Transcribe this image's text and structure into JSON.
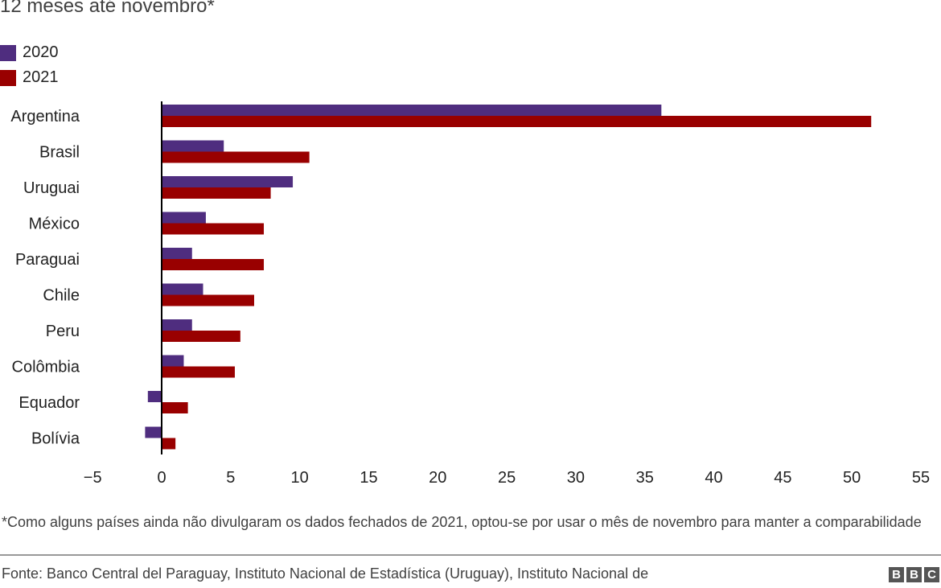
{
  "chart_data": {
    "type": "bar",
    "orientation": "horizontal",
    "subtitle": "12 meses até novembro*",
    "categories": [
      "Argentina",
      "Brasil",
      "Uruguai",
      "México",
      "Paraguai",
      "Chile",
      "Peru",
      "Colômbia",
      "Equador",
      "Bolívia"
    ],
    "series": [
      {
        "name": "2020",
        "color": "#4f2d7f",
        "values": [
          36.2,
          4.5,
          9.5,
          3.2,
          2.2,
          3.0,
          2.2,
          1.6,
          -1.0,
          -1.2
        ]
      },
      {
        "name": "2021",
        "color": "#990000",
        "values": [
          51.4,
          10.7,
          7.9,
          7.4,
          7.4,
          6.7,
          5.7,
          5.3,
          1.9,
          1.0
        ]
      }
    ],
    "xlim": [
      -5,
      55
    ],
    "xticks": [
      "−5",
      "0",
      "5",
      "10",
      "15",
      "20",
      "25",
      "30",
      "35",
      "40",
      "45",
      "50",
      "55"
    ],
    "xtick_values": [
      -5,
      0,
      5,
      10,
      15,
      20,
      25,
      30,
      35,
      40,
      45,
      50,
      55
    ],
    "grid": false,
    "legend_placement": "top-left"
  },
  "note": "*Como alguns países ainda não divulgaram os dados fechados de 2021, optou-se por usar o mês de novembro para manter a comparabilidade",
  "source": "Fonte: Banco Central del Paraguay, Instituto Nacional de Estadística (Uruguay), Instituto Nacional de",
  "logo": [
    "B",
    "B",
    "C"
  ]
}
